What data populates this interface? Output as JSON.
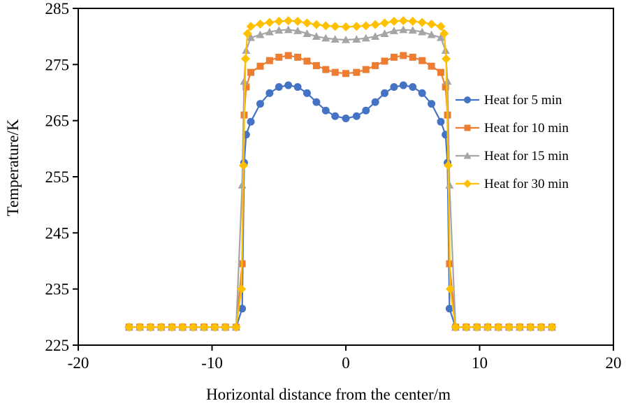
{
  "figure": {
    "background": "#ffffff"
  },
  "chart_data": {
    "type": "line",
    "title": "",
    "xlabel": "Horizontal distance from the center/m",
    "ylabel": "Temperature/K",
    "xlim": [
      -20,
      20
    ],
    "ylim": [
      225,
      285
    ],
    "x_ticks": [
      -20,
      -10,
      0,
      10,
      20
    ],
    "y_ticks": [
      225,
      235,
      245,
      255,
      265,
      275,
      285
    ],
    "grid": false,
    "legend_position": "inside-right",
    "series": [
      {
        "name": "Heat for 5 min",
        "color": "#4472C4",
        "marker": "circle",
        "points": [
          [
            -16.2,
            228.2
          ],
          [
            -15.4,
            228.2
          ],
          [
            -14.6,
            228.2
          ],
          [
            -13.8,
            228.2
          ],
          [
            -13,
            228.2
          ],
          [
            -12.2,
            228.2
          ],
          [
            -11.4,
            228.2
          ],
          [
            -10.6,
            228.2
          ],
          [
            -9.8,
            228.2
          ],
          [
            -9,
            228.2
          ],
          [
            -8.2,
            228.2
          ],
          [
            -7.75,
            231.5
          ],
          [
            -7.6,
            257.5
          ],
          [
            -7.45,
            262.5
          ],
          [
            -7.1,
            264.8
          ],
          [
            -6.4,
            268
          ],
          [
            -5.7,
            269.9
          ],
          [
            -5,
            271
          ],
          [
            -4.3,
            271.3
          ],
          [
            -3.6,
            271
          ],
          [
            -2.9,
            269.9
          ],
          [
            -2.2,
            268.3
          ],
          [
            -1.5,
            266.8
          ],
          [
            -0.8,
            265.8
          ],
          [
            0,
            265.4
          ],
          [
            0.8,
            265.8
          ],
          [
            1.5,
            266.8
          ],
          [
            2.2,
            268.3
          ],
          [
            2.9,
            269.9
          ],
          [
            3.6,
            271
          ],
          [
            4.3,
            271.3
          ],
          [
            5,
            271
          ],
          [
            5.7,
            269.9
          ],
          [
            6.4,
            268
          ],
          [
            7.1,
            264.8
          ],
          [
            7.45,
            262.5
          ],
          [
            7.6,
            257.5
          ],
          [
            7.75,
            231.5
          ],
          [
            8.2,
            228.2
          ],
          [
            9,
            228.2
          ],
          [
            9.8,
            228.2
          ],
          [
            10.6,
            228.2
          ],
          [
            11.4,
            228.2
          ],
          [
            12.2,
            228.2
          ],
          [
            13,
            228.2
          ],
          [
            13.8,
            228.2
          ],
          [
            14.6,
            228.2
          ],
          [
            15.4,
            228.2
          ]
        ]
      },
      {
        "name": "Heat for 10 min",
        "color": "#ED7D31",
        "marker": "square",
        "points": [
          [
            -16.2,
            228.2
          ],
          [
            -15.4,
            228.2
          ],
          [
            -14.6,
            228.2
          ],
          [
            -13.8,
            228.2
          ],
          [
            -13,
            228.2
          ],
          [
            -12.2,
            228.2
          ],
          [
            -11.4,
            228.2
          ],
          [
            -10.6,
            228.2
          ],
          [
            -9.8,
            228.2
          ],
          [
            -9,
            228.2
          ],
          [
            -8.2,
            228.2
          ],
          [
            -7.75,
            239.5
          ],
          [
            -7.6,
            266
          ],
          [
            -7.45,
            271
          ],
          [
            -7.1,
            273.6
          ],
          [
            -6.4,
            274.7
          ],
          [
            -5.7,
            275.7
          ],
          [
            -5,
            276.3
          ],
          [
            -4.3,
            276.6
          ],
          [
            -3.6,
            276.3
          ],
          [
            -2.9,
            275.6
          ],
          [
            -2.2,
            274.8
          ],
          [
            -1.5,
            274.1
          ],
          [
            -0.8,
            273.6
          ],
          [
            0,
            273.4
          ],
          [
            0.8,
            273.6
          ],
          [
            1.5,
            274.1
          ],
          [
            2.2,
            274.8
          ],
          [
            2.9,
            275.6
          ],
          [
            3.6,
            276.3
          ],
          [
            4.3,
            276.6
          ],
          [
            5,
            276.3
          ],
          [
            5.7,
            275.7
          ],
          [
            6.4,
            274.7
          ],
          [
            7.1,
            273.6
          ],
          [
            7.45,
            271
          ],
          [
            7.6,
            266
          ],
          [
            7.75,
            239.5
          ],
          [
            8.2,
            228.2
          ],
          [
            9,
            228.2
          ],
          [
            9.8,
            228.2
          ],
          [
            10.6,
            228.2
          ],
          [
            11.4,
            228.2
          ],
          [
            12.2,
            228.2
          ],
          [
            13,
            228.2
          ],
          [
            13.8,
            228.2
          ],
          [
            14.6,
            228.2
          ],
          [
            15.4,
            228.2
          ]
        ]
      },
      {
        "name": "Heat for 15 min",
        "color": "#A5A5A5",
        "marker": "triangle",
        "points": [
          [
            -16.2,
            228.2
          ],
          [
            -15.4,
            228.2
          ],
          [
            -14.6,
            228.2
          ],
          [
            -13.8,
            228.2
          ],
          [
            -13,
            228.2
          ],
          [
            -12.2,
            228.2
          ],
          [
            -11.4,
            228.2
          ],
          [
            -10.6,
            228.2
          ],
          [
            -9.8,
            228.2
          ],
          [
            -9,
            228.2
          ],
          [
            -8.2,
            228.2
          ],
          [
            -7.75,
            253.5
          ],
          [
            -7.6,
            272
          ],
          [
            -7.45,
            277.5
          ],
          [
            -7.1,
            279.8
          ],
          [
            -6.4,
            280.3
          ],
          [
            -5.7,
            280.8
          ],
          [
            -5,
            281.1
          ],
          [
            -4.3,
            281.2
          ],
          [
            -3.6,
            281
          ],
          [
            -2.9,
            280.5
          ],
          [
            -2.2,
            280
          ],
          [
            -1.5,
            279.7
          ],
          [
            -0.8,
            279.5
          ],
          [
            0,
            279.4
          ],
          [
            0.8,
            279.5
          ],
          [
            1.5,
            279.7
          ],
          [
            2.2,
            280
          ],
          [
            2.9,
            280.5
          ],
          [
            3.6,
            281
          ],
          [
            4.3,
            281.2
          ],
          [
            5,
            281.1
          ],
          [
            5.7,
            280.8
          ],
          [
            6.4,
            280.3
          ],
          [
            7.1,
            279.8
          ],
          [
            7.45,
            277.5
          ],
          [
            7.6,
            272
          ],
          [
            7.75,
            253.5
          ],
          [
            8.2,
            228.2
          ],
          [
            9,
            228.2
          ],
          [
            9.8,
            228.2
          ],
          [
            10.6,
            228.2
          ],
          [
            11.4,
            228.2
          ],
          [
            12.2,
            228.2
          ],
          [
            13,
            228.2
          ],
          [
            13.8,
            228.2
          ],
          [
            14.6,
            228.2
          ],
          [
            15.4,
            228.2
          ]
        ]
      },
      {
        "name": "Heat for 30 min",
        "color": "#FFC000",
        "marker": "diamond",
        "points": [
          [
            -16.2,
            228.2
          ],
          [
            -15.4,
            228.2
          ],
          [
            -14.6,
            228.2
          ],
          [
            -13.8,
            228.2
          ],
          [
            -13,
            228.2
          ],
          [
            -12.2,
            228.2
          ],
          [
            -11.4,
            228.2
          ],
          [
            -10.6,
            228.2
          ],
          [
            -9.8,
            228.2
          ],
          [
            -9,
            228.2
          ],
          [
            -8.2,
            228.2
          ],
          [
            -7.8,
            235
          ],
          [
            -7.65,
            257
          ],
          [
            -7.5,
            276
          ],
          [
            -7.35,
            280.5
          ],
          [
            -7.1,
            281.8
          ],
          [
            -6.4,
            282.2
          ],
          [
            -5.7,
            282.5
          ],
          [
            -5,
            282.7
          ],
          [
            -4.3,
            282.8
          ],
          [
            -3.6,
            282.7
          ],
          [
            -2.9,
            282.4
          ],
          [
            -2.2,
            282.1
          ],
          [
            -1.5,
            281.9
          ],
          [
            -0.8,
            281.8
          ],
          [
            0,
            281.7
          ],
          [
            0.8,
            281.8
          ],
          [
            1.5,
            281.9
          ],
          [
            2.2,
            282.1
          ],
          [
            2.9,
            282.4
          ],
          [
            3.6,
            282.7
          ],
          [
            4.3,
            282.8
          ],
          [
            5,
            282.7
          ],
          [
            5.7,
            282.5
          ],
          [
            6.4,
            282.2
          ],
          [
            7.1,
            281.8
          ],
          [
            7.35,
            280.5
          ],
          [
            7.5,
            276
          ],
          [
            7.65,
            257
          ],
          [
            7.8,
            235
          ],
          [
            8.2,
            228.2
          ],
          [
            9,
            228.2
          ],
          [
            9.8,
            228.2
          ],
          [
            10.6,
            228.2
          ],
          [
            11.4,
            228.2
          ],
          [
            12.2,
            228.2
          ],
          [
            13,
            228.2
          ],
          [
            13.8,
            228.2
          ],
          [
            14.6,
            228.2
          ],
          [
            15.4,
            228.2
          ]
        ]
      }
    ]
  }
}
